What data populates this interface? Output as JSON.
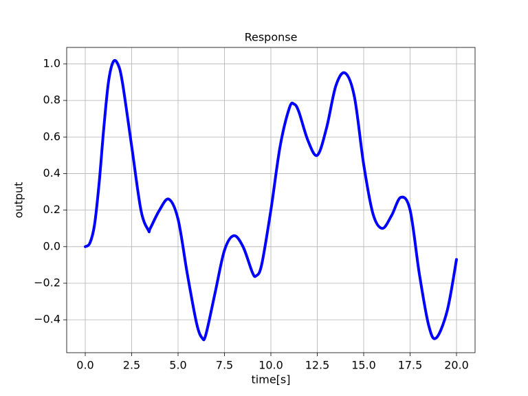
{
  "chart_data": {
    "type": "line",
    "title": "Response",
    "x_label": "time[s]",
    "y_label": "output",
    "x": [
      0,
      0.25,
      0.5,
      0.75,
      1.0,
      1.25,
      1.5,
      1.75,
      2.0,
      2.5,
      3.0,
      3.4,
      3.5,
      4.0,
      4.5,
      5.0,
      5.5,
      6.0,
      6.3,
      6.5,
      7.0,
      7.5,
      8.0,
      8.5,
      9.0,
      9.2,
      9.5,
      10.0,
      10.5,
      11.0,
      11.25,
      11.5,
      12.0,
      12.5,
      13.0,
      13.5,
      14.0,
      14.5,
      15.0,
      15.5,
      16.0,
      16.5,
      17.0,
      17.5,
      18.0,
      18.5,
      18.9,
      19.5,
      20.0
    ],
    "series": [
      {
        "name": "output",
        "color": "#0000ff",
        "values": [
          0,
          0.02,
          0.12,
          0.35,
          0.65,
          0.9,
          1.01,
          1.0,
          0.9,
          0.55,
          0.2,
          0.09,
          0.1,
          0.2,
          0.26,
          0.15,
          -0.15,
          -0.42,
          -0.5,
          -0.48,
          -0.25,
          -0.02,
          0.06,
          0.0,
          -0.14,
          -0.16,
          -0.1,
          0.2,
          0.55,
          0.76,
          0.78,
          0.74,
          0.58,
          0.5,
          0.65,
          0.88,
          0.95,
          0.82,
          0.45,
          0.18,
          0.1,
          0.17,
          0.27,
          0.2,
          -0.15,
          -0.43,
          -0.5,
          -0.35,
          -0.07
        ]
      }
    ],
    "xlim": [
      -1,
      21
    ],
    "ylim": [
      -0.58,
      1.09
    ],
    "xticks": [
      {
        "value": 0,
        "label": "0.0"
      },
      {
        "value": 2.5,
        "label": "2.5"
      },
      {
        "value": 5,
        "label": "5.0"
      },
      {
        "value": 7.5,
        "label": "7.5"
      },
      {
        "value": 10,
        "label": "10.0"
      },
      {
        "value": 12.5,
        "label": "12.5"
      },
      {
        "value": 15,
        "label": "15.0"
      },
      {
        "value": 17.5,
        "label": "17.5"
      },
      {
        "value": 20,
        "label": "20.0"
      }
    ],
    "yticks": [
      {
        "value": -0.4,
        "label": "−0.4"
      },
      {
        "value": -0.2,
        "label": "−0.2"
      },
      {
        "value": 0,
        "label": "0.0"
      },
      0.2,
      0.4,
      0.6,
      0.8,
      {
        "value": 1,
        "label": "1.0"
      }
    ],
    "grid": true
  }
}
